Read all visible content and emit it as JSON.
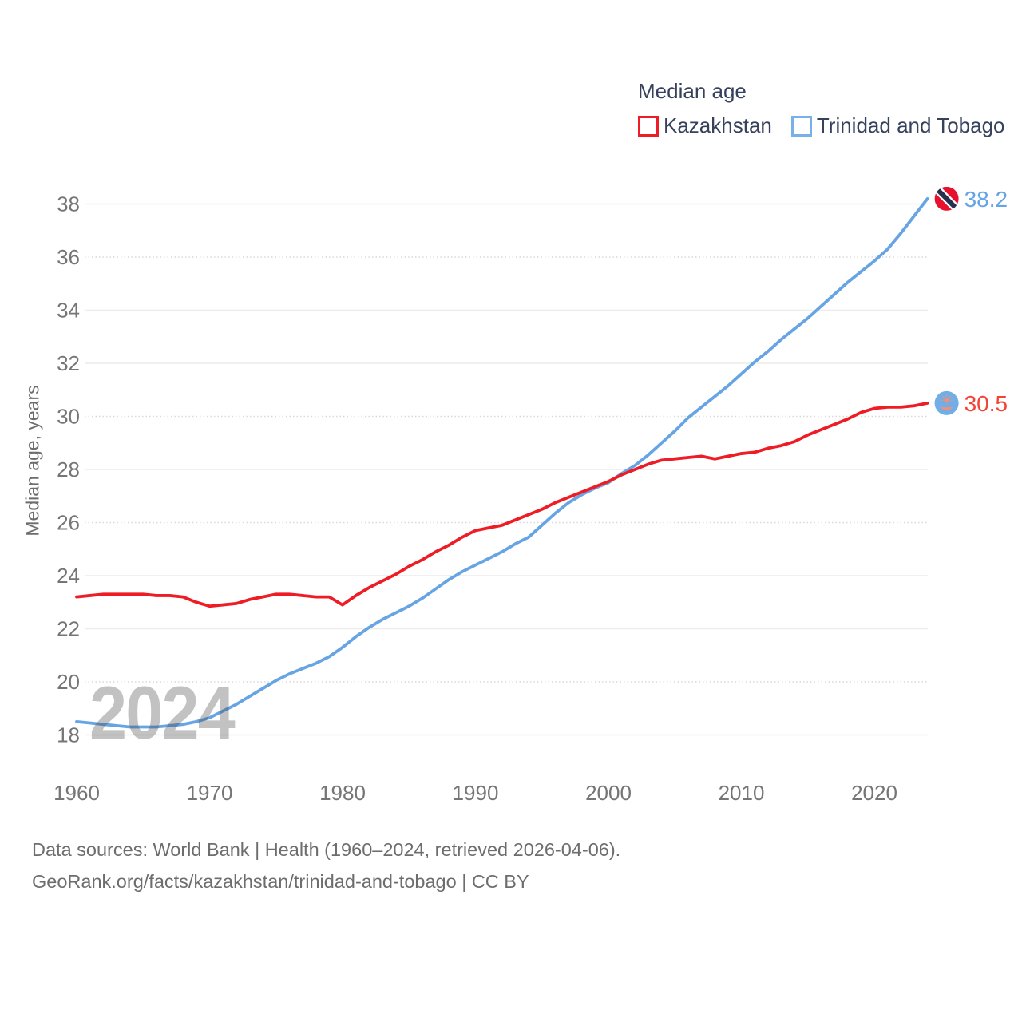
{
  "chart_data": {
    "type": "line",
    "title": "Median age",
    "ylabel": "Median age, years",
    "xlabel": "",
    "watermark": "2024",
    "grid": true,
    "legend_position": "top-right",
    "xlim": [
      1960,
      2024
    ],
    "ylim": [
      18,
      38
    ],
    "xticks": [
      1960,
      1970,
      1980,
      1990,
      2000,
      2010,
      2020
    ],
    "yticks": [
      18,
      20,
      22,
      24,
      26,
      28,
      30,
      32,
      34,
      36,
      38
    ],
    "dotted_gridlines": [
      20,
      26,
      30,
      36
    ],
    "x": [
      1960,
      1961,
      1962,
      1963,
      1964,
      1965,
      1966,
      1967,
      1968,
      1969,
      1970,
      1971,
      1972,
      1973,
      1974,
      1975,
      1976,
      1977,
      1978,
      1979,
      1980,
      1981,
      1982,
      1983,
      1984,
      1985,
      1986,
      1987,
      1988,
      1989,
      1990,
      1991,
      1992,
      1993,
      1994,
      1995,
      1996,
      1997,
      1998,
      1999,
      2000,
      2001,
      2002,
      2003,
      2004,
      2005,
      2006,
      2007,
      2008,
      2009,
      2010,
      2011,
      2012,
      2013,
      2014,
      2015,
      2016,
      2017,
      2018,
      2019,
      2020,
      2021,
      2022,
      2023,
      2024
    ],
    "series": [
      {
        "name": "Kazakhstan",
        "color": "#ee1c25",
        "label_color": "#f44336",
        "end_label": "30.5",
        "values": [
          23.2,
          23.25,
          23.3,
          23.3,
          23.3,
          23.3,
          23.25,
          23.25,
          23.2,
          23.0,
          22.85,
          22.9,
          22.95,
          23.1,
          23.2,
          23.3,
          23.3,
          23.25,
          23.2,
          23.2,
          22.9,
          23.25,
          23.55,
          23.8,
          24.05,
          24.35,
          24.6,
          24.9,
          25.15,
          25.45,
          25.7,
          25.8,
          25.9,
          26.1,
          26.3,
          26.5,
          26.75,
          26.95,
          27.15,
          27.35,
          27.55,
          27.8,
          28.0,
          28.2,
          28.35,
          28.4,
          28.45,
          28.5,
          28.4,
          28.5,
          28.6,
          28.65,
          28.8,
          28.9,
          29.05,
          29.3,
          29.5,
          29.7,
          29.9,
          30.15,
          30.3,
          30.35,
          30.35,
          30.4,
          30.5
        ]
      },
      {
        "name": "Trinidad and Tobago",
        "color": "#66a4e4",
        "label_color": "#66a4e4",
        "end_label": "38.2",
        "values": [
          18.5,
          18.45,
          18.4,
          18.35,
          18.3,
          18.3,
          18.3,
          18.35,
          18.4,
          18.5,
          18.65,
          18.9,
          19.15,
          19.45,
          19.75,
          20.05,
          20.3,
          20.5,
          20.7,
          20.95,
          21.3,
          21.7,
          22.05,
          22.35,
          22.6,
          22.85,
          23.15,
          23.5,
          23.85,
          24.15,
          24.4,
          24.65,
          24.9,
          25.2,
          25.45,
          25.9,
          26.35,
          26.75,
          27.05,
          27.3,
          27.5,
          27.85,
          28.15,
          28.55,
          29.0,
          29.45,
          29.95,
          30.35,
          30.75,
          31.15,
          31.6,
          32.05,
          32.45,
          32.9,
          33.3,
          33.7,
          34.15,
          34.6,
          35.05,
          35.45,
          35.85,
          36.3,
          36.9,
          37.55,
          38.2
        ]
      }
    ]
  },
  "footer": {
    "line1": "Data sources: World Bank | Health (1960–2024, retrieved 2026-04-06).",
    "line2": "GeoRank.org/facts/kazakhstan/trinidad-and-tobago | CC BY"
  }
}
